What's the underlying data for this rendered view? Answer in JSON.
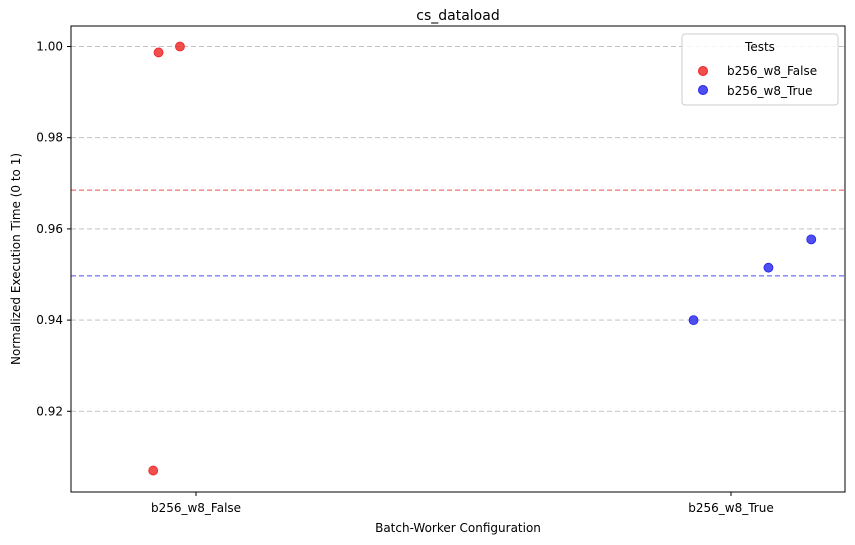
{
  "chart_data": {
    "type": "scatter",
    "title": "cs_dataload",
    "xlabel": "Batch-Worker Configuration",
    "ylabel": "Normalized Execution Time (0 to 1)",
    "categories": [
      "b256_w8_False",
      "b256_w8_True"
    ],
    "ylim": [
      0.9023,
      1.0045
    ],
    "yticks": [
      "0.92",
      "0.94",
      "0.96",
      "0.98",
      "1.00"
    ],
    "grid": "horizontal dashed",
    "legend_title": "Tests",
    "legend_position": "top-right",
    "series": [
      {
        "name": "b256_w8_False",
        "color": "#ee2222",
        "points": [
          {
            "category_offset": -0.08,
            "y": 0.907
          },
          {
            "category_offset": -0.07,
            "y": 0.9987
          },
          {
            "category_offset": -0.03,
            "y": 1.0
          }
        ],
        "mean": 0.9685
      },
      {
        "name": "b256_w8_True",
        "color": "#2222ee",
        "points": [
          {
            "category_offset": 0.93,
            "y": 0.94
          },
          {
            "category_offset": 1.07,
            "y": 0.9515
          },
          {
            "category_offset": 1.15,
            "y": 0.9577
          }
        ],
        "mean": 0.9497
      }
    ]
  }
}
